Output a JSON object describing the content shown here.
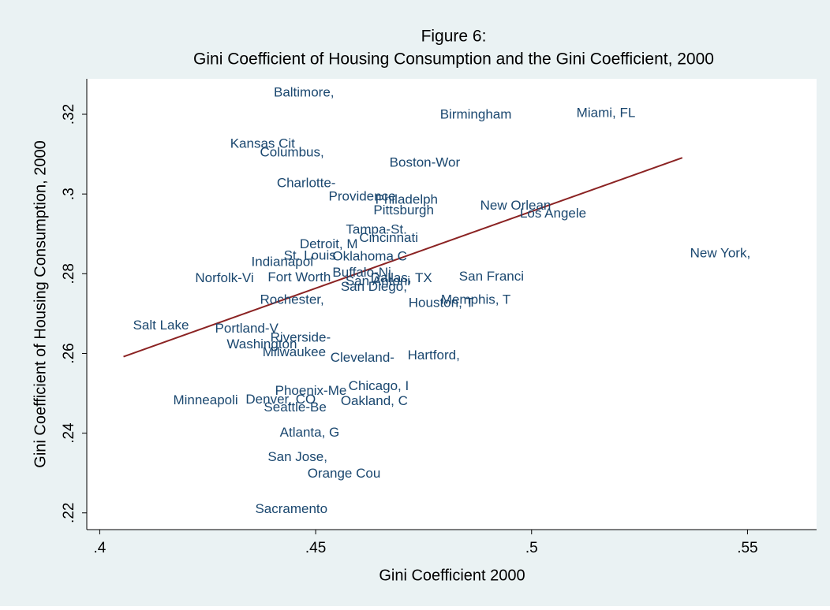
{
  "chart_data": {
    "type": "scatter",
    "title": "Figure 6:",
    "subtitle": "Gini Coefficient of Housing Consumption and the Gini Coefficient, 2000",
    "x_label": "Gini Coefficient 2000",
    "y_label": "Gini Coefficient of Housing Consumption, 2000",
    "color": "#1a476f",
    "xlim": [
      0.397,
      0.566
    ],
    "ylim": [
      0.2158,
      0.3289
    ],
    "xticks": [
      {
        "value": 0.4,
        "label": ".4"
      },
      {
        "value": 0.45,
        "label": ".45"
      },
      {
        "value": 0.5,
        "label": ".5"
      },
      {
        "value": 0.55,
        "label": ".55"
      }
    ],
    "yticks": [
      {
        "value": 0.22,
        "label": ".22"
      },
      {
        "value": 0.24,
        "label": ".24"
      },
      {
        "value": 0.26,
        "label": ".26"
      },
      {
        "value": 0.28,
        "label": ".28"
      },
      {
        "value": 0.3,
        "label": ".3"
      },
      {
        "value": 0.32,
        "label": ".32"
      }
    ],
    "labels": [
      "Baltimore,",
      "Birmingham",
      "Miami, FL",
      "Kansas Cit",
      "Columbus,",
      "Boston-Wor",
      "Charlotte-",
      "Providence",
      "Philadelph",
      "Pittsburgh",
      "New Orlean",
      "Los Angele",
      "Tampa-St.",
      "Cincinnati",
      "Detroit, M",
      "St. Louis",
      "Oklahoma C",
      "Indianapol",
      "New York,",
      "Norfolk-Vi",
      "Fort Worth",
      "Buffalo-Ni",
      "Dallas, TX",
      "San Antoni",
      "San Diego,",
      "San Franci",
      "Houston, T",
      "Memphis, T",
      "Rochester,",
      "Salt Lake",
      "Portland-V",
      "Riverside-",
      "Washington",
      "Milwaukee",
      "Cleveland-",
      "Hartford,",
      "Chicago, I",
      "Phoenix-Me",
      "Minneapoli",
      "Denver, CO",
      "Oakland, C",
      "Seattle-Be",
      "Atlanta, G",
      "San Jose,",
      "Orange Cou",
      "Sacramento"
    ],
    "x": [
      0.4403,
      0.4788,
      0.5104,
      0.4302,
      0.4371,
      0.4671,
      0.441,
      0.453,
      0.4638,
      0.4634,
      0.4881,
      0.4973,
      0.457,
      0.4601,
      0.4463,
      0.4426,
      0.4539,
      0.4351,
      0.5367,
      0.4221,
      0.4389,
      0.4539,
      0.4627,
      0.4569,
      0.4558,
      0.4832,
      0.4715,
      0.479,
      0.4371,
      0.4077,
      0.4267,
      0.4395,
      0.4294,
      0.4377,
      0.4534,
      0.4713,
      0.4576,
      0.4406,
      0.417,
      0.4338,
      0.4558,
      0.438,
      0.4417,
      0.4389,
      0.4481,
      0.436
    ],
    "values": [
      0.3253,
      0.3198,
      0.3202,
      0.3125,
      0.3103,
      0.3077,
      0.3026,
      0.2992,
      0.2984,
      0.2958,
      0.297,
      0.295,
      0.2909,
      0.2889,
      0.2873,
      0.2844,
      0.2842,
      0.2828,
      0.285,
      0.2788,
      0.279,
      0.2802,
      0.2788,
      0.278,
      0.2766,
      0.2792,
      0.2725,
      0.2733,
      0.2733,
      0.2669,
      0.2661,
      0.2638,
      0.2622,
      0.2602,
      0.2588,
      0.2594,
      0.2517,
      0.2505,
      0.2481,
      0.2483,
      0.2479,
      0.2463,
      0.24,
      0.2339,
      0.2297,
      0.2208
    ],
    "fit_line": {
      "x": [
        0.4055,
        0.5349
      ],
      "values": [
        0.2592,
        0.3091
      ],
      "color": "#8b2323"
    }
  }
}
